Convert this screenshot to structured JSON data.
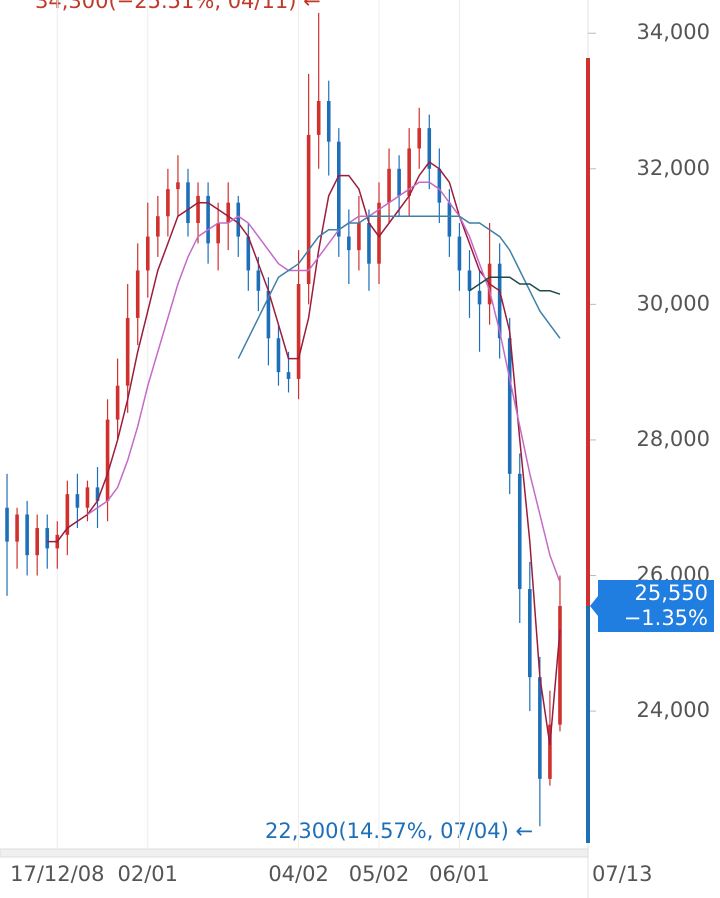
{
  "chart_data": {
    "type": "candlestick",
    "categories": [
      null,
      null,
      null,
      null,
      null,
      "17/12/08",
      null,
      null,
      null,
      null,
      null,
      null,
      null,
      null,
      "02/01",
      null,
      null,
      null,
      null,
      null,
      null,
      null,
      null,
      null,
      null,
      null,
      null,
      null,
      null,
      "04/02",
      null,
      null,
      null,
      null,
      null,
      null,
      null,
      "05/02",
      null,
      null,
      null,
      null,
      null,
      null,
      null,
      "06/01",
      null,
      null,
      null,
      null,
      null,
      null,
      null,
      null,
      null,
      "07/13"
    ],
    "open": [
      27000,
      26500,
      26900,
      26300,
      26700,
      26400,
      26600,
      27200,
      27000,
      27300,
      27100,
      28300,
      28800,
      29800,
      30500,
      31000,
      31300,
      31700,
      31800,
      31200,
      31600,
      30900,
      31200,
      31500,
      31000,
      30500,
      30200,
      29500,
      29000,
      28900,
      30300,
      32500,
      33000,
      32400,
      31000,
      30800,
      31200,
      30600,
      31500,
      32000,
      31600,
      32300,
      32600,
      32000,
      31500,
      31000,
      30500,
      30200,
      30000,
      30600,
      29500,
      27500,
      25800,
      24500,
      23000,
      23800
    ],
    "high": [
      27500,
      27000,
      27100,
      26900,
      26900,
      26800,
      27400,
      27500,
      27400,
      27600,
      28600,
      29200,
      30300,
      30900,
      31500,
      31600,
      32000,
      32200,
      32000,
      31800,
      31800,
      31500,
      31800,
      31600,
      31200,
      30700,
      30400,
      29700,
      29300,
      30800,
      33400,
      34300,
      33300,
      32600,
      31400,
      31600,
      31400,
      31800,
      32300,
      32200,
      32600,
      32900,
      32800,
      32300,
      31700,
      31200,
      30800,
      30500,
      31200,
      30900,
      29800,
      27800,
      26200,
      24800,
      24300,
      26000
    ],
    "low": [
      25700,
      26100,
      26000,
      26000,
      26100,
      26100,
      26300,
      26700,
      26800,
      26700,
      26800,
      28000,
      28400,
      29400,
      30100,
      30700,
      31000,
      31300,
      31000,
      30900,
      30600,
      30500,
      30800,
      30700,
      30200,
      29900,
      29100,
      28800,
      28700,
      28600,
      30000,
      32000,
      31900,
      30700,
      30300,
      30500,
      30200,
      30300,
      31200,
      31300,
      31300,
      32000,
      31700,
      31200,
      30700,
      30200,
      29800,
      29300,
      29700,
      29200,
      27200,
      25300,
      24000,
      22300,
      22900,
      23700
    ],
    "close": [
      26500,
      26900,
      26300,
      26700,
      26400,
      26600,
      27200,
      27000,
      27300,
      27100,
      28300,
      28800,
      29800,
      30500,
      31000,
      31300,
      31700,
      31800,
      31200,
      31600,
      30900,
      31200,
      31500,
      31000,
      30500,
      30200,
      29500,
      29000,
      28900,
      30300,
      32500,
      33000,
      32400,
      31000,
      30800,
      31200,
      30600,
      31500,
      32000,
      31600,
      32300,
      32600,
      32000,
      31500,
      31000,
      30500,
      30200,
      30000,
      30600,
      29500,
      27500,
      25800,
      24500,
      23000,
      23800,
      25550
    ],
    "up_color": "#d0312d",
    "down_color": "#1f6fb8",
    "moving_averages": [
      {
        "color": "#9b1c3c",
        "values": [
          null,
          null,
          null,
          null,
          26500,
          26500,
          26700,
          26800,
          26900,
          27100,
          27500,
          28000,
          28600,
          29300,
          29900,
          30500,
          30900,
          31300,
          31400,
          31500,
          31500,
          31400,
          31300,
          31200,
          31000,
          30600,
          30200,
          29700,
          29200,
          29200,
          29800,
          30800,
          31600,
          31900,
          31900,
          31700,
          31200,
          31000,
          31200,
          31400,
          31600,
          31900,
          32100,
          32000,
          31800,
          31300,
          30900,
          30500,
          30300,
          30200,
          29600,
          28000,
          26500,
          24500,
          23500,
          25200
        ]
      },
      {
        "color": "#c46ac8",
        "values": [
          null,
          null,
          null,
          null,
          null,
          null,
          null,
          null,
          26900,
          27000,
          27100,
          27300,
          27700,
          28200,
          28800,
          29300,
          29800,
          30300,
          30700,
          31000,
          31100,
          31200,
          31200,
          31300,
          31200,
          31000,
          30800,
          30600,
          30500,
          30500,
          30500,
          30700,
          30900,
          31100,
          31200,
          31300,
          31300,
          31400,
          31500,
          31600,
          31700,
          31800,
          31800,
          31700,
          31500,
          31300,
          31000,
          30600,
          30200,
          29600,
          28900,
          28200,
          27500,
          26900,
          26300,
          25900
        ]
      },
      {
        "color": "#3f7fa8",
        "values": [
          null,
          null,
          null,
          null,
          null,
          null,
          null,
          null,
          null,
          null,
          null,
          null,
          null,
          null,
          null,
          null,
          null,
          null,
          null,
          null,
          null,
          null,
          null,
          29200,
          29500,
          29800,
          30100,
          30400,
          30500,
          30600,
          30800,
          31000,
          31100,
          31100,
          31200,
          31200,
          31300,
          31300,
          31300,
          31300,
          31300,
          31300,
          31300,
          31300,
          31300,
          31300,
          31200,
          31200,
          31100,
          31000,
          30800,
          30500,
          30200,
          29900,
          29700,
          29500
        ]
      },
      {
        "color": "#1e4a4a",
        "values": [
          null,
          null,
          null,
          null,
          null,
          null,
          null,
          null,
          null,
          null,
          null,
          null,
          null,
          null,
          null,
          null,
          null,
          null,
          null,
          null,
          null,
          null,
          null,
          null,
          null,
          null,
          null,
          null,
          null,
          null,
          null,
          null,
          null,
          null,
          null,
          null,
          null,
          null,
          null,
          null,
          null,
          null,
          null,
          null,
          null,
          null,
          30200,
          30300,
          30400,
          30400,
          30400,
          30300,
          30300,
          30200,
          30200,
          30150
        ]
      }
    ],
    "ylim": [
      21980,
      34490
    ],
    "yticks": [
      {
        "value": 24000,
        "label": "24,000"
      },
      {
        "value": 26000,
        "label": "26,000"
      },
      {
        "value": 28000,
        "label": "28,000"
      },
      {
        "value": 30000,
        "label": "30,000"
      },
      {
        "value": 32000,
        "label": "32,000"
      },
      {
        "value": 34000,
        "label": "34,000"
      }
    ],
    "grid": true,
    "last_price": {
      "value": 25550,
      "label": "25,550"
    },
    "last_change": "−1.35%",
    "high_annotation": "34,300(−25.51%, 04/11) ←",
    "low_annotation": "22,300(14.57%, 07/04) ←"
  }
}
